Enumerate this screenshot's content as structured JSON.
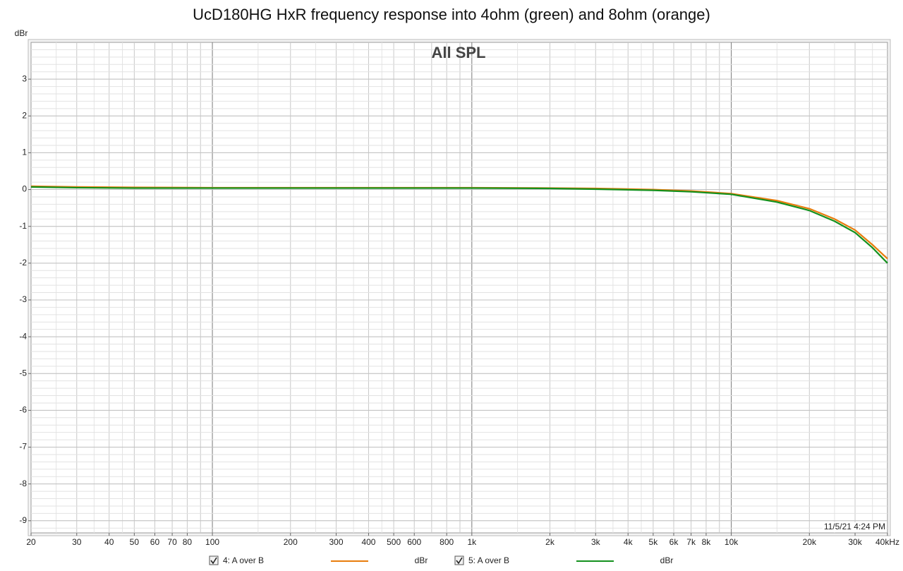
{
  "chart_data": {
    "type": "line",
    "title": "UcD180HG HxR frequency response into 4ohm (green) and 8ohm (orange)",
    "subtitle": "All SPL",
    "y_label": "dBr",
    "annotation": "11/5/21 4:24 PM",
    "log_x": true,
    "grid": true,
    "xlim": [
      20,
      40000
    ],
    "ylim": [
      -9.33,
      4
    ],
    "xticks": [
      20,
      30,
      40,
      50,
      60,
      70,
      80,
      100,
      200,
      300,
      400,
      500,
      600,
      800,
      {
        "value": 1000,
        "label": "1k"
      },
      {
        "value": 2000,
        "label": "2k"
      },
      {
        "value": 3000,
        "label": "3k"
      },
      {
        "value": 4000,
        "label": "4k"
      },
      {
        "value": 5000,
        "label": "5k"
      },
      {
        "value": 6000,
        "label": "6k"
      },
      {
        "value": 7000,
        "label": "7k"
      },
      {
        "value": 8000,
        "label": "8k"
      },
      {
        "value": 10000,
        "label": "10k"
      },
      {
        "value": 20000,
        "label": "20k"
      },
      {
        "value": 30000,
        "label": "30k"
      },
      {
        "value": 40000,
        "label": "40kHz"
      }
    ],
    "yticks": [
      3,
      2,
      1,
      0,
      -1,
      -2,
      -3,
      -4,
      -5,
      -6,
      -7,
      -8,
      -9
    ],
    "x": [
      20,
      30,
      50,
      100,
      200,
      500,
      1000,
      2000,
      3000,
      5000,
      7000,
      10000,
      15000,
      20000,
      25000,
      30000,
      35000,
      40000
    ],
    "series": [
      {
        "name": "4: A over B",
        "unit": "dBr",
        "color": "#e87d0d",
        "values": [
          0.09,
          0.07,
          0.06,
          0.05,
          0.05,
          0.05,
          0.05,
          0.04,
          0.03,
          0.0,
          -0.04,
          -0.11,
          -0.3,
          -0.52,
          -0.8,
          -1.1,
          -1.5,
          -1.88
        ]
      },
      {
        "name": "5: A over B",
        "unit": "dBr",
        "color": "#14911e",
        "values": [
          0.07,
          0.05,
          0.04,
          0.04,
          0.04,
          0.04,
          0.04,
          0.03,
          0.01,
          -0.02,
          -0.06,
          -0.13,
          -0.34,
          -0.57,
          -0.86,
          -1.17,
          -1.58,
          -2.0
        ]
      }
    ]
  }
}
